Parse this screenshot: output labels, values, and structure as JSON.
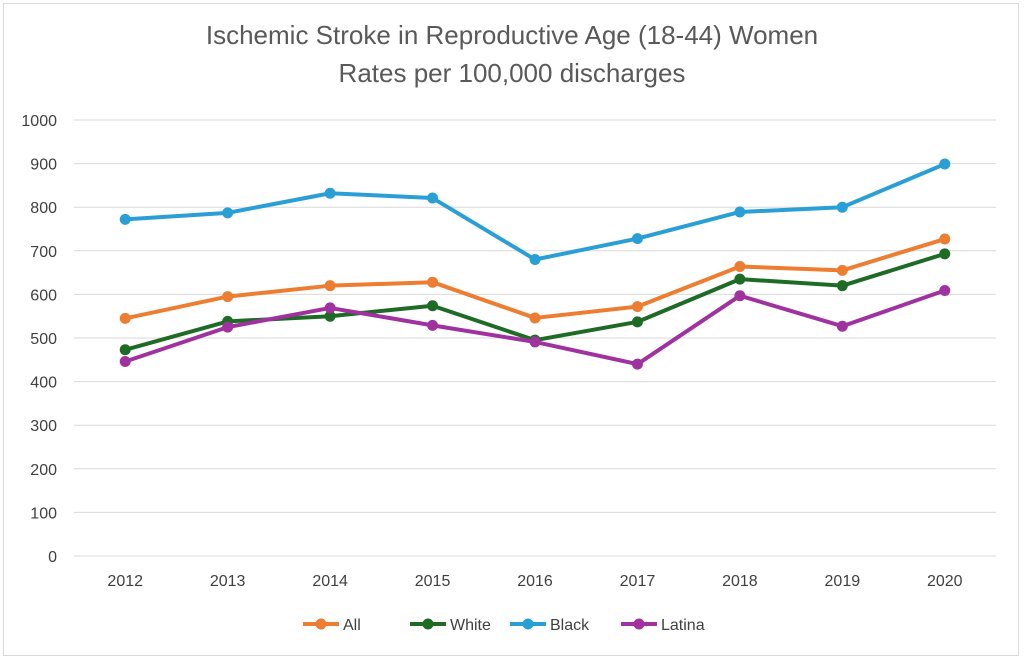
{
  "chart_data": {
    "type": "line",
    "title": "Ischemic Stroke in Reproductive Age (18-44) Women",
    "subtitle": "Rates per 100,000 discharges",
    "xlabel": "",
    "ylabel": "",
    "ylim": [
      0,
      1000
    ],
    "y_ticks": [
      0,
      100,
      200,
      300,
      400,
      500,
      600,
      700,
      800,
      900,
      1000
    ],
    "categories": [
      "2012",
      "2013",
      "2014",
      "2015",
      "2016",
      "2017",
      "2018",
      "2019",
      "2020"
    ],
    "grid": "horizontal",
    "legend_position": "bottom",
    "series": [
      {
        "name": "All",
        "color": "#ED7D31",
        "values": [
          545,
          595,
          620,
          628,
          546,
          572,
          664,
          655,
          727
        ]
      },
      {
        "name": "White",
        "color": "#1E6B26",
        "values": [
          473,
          538,
          550,
          574,
          495,
          537,
          635,
          620,
          693
        ]
      },
      {
        "name": "Black",
        "color": "#2A9FD6",
        "values": [
          772,
          787,
          832,
          821,
          680,
          728,
          789,
          800,
          899
        ]
      },
      {
        "name": "Latina",
        "color": "#A032A0",
        "values": [
          446,
          525,
          569,
          529,
          491,
          440,
          597,
          527,
          609
        ]
      }
    ]
  }
}
